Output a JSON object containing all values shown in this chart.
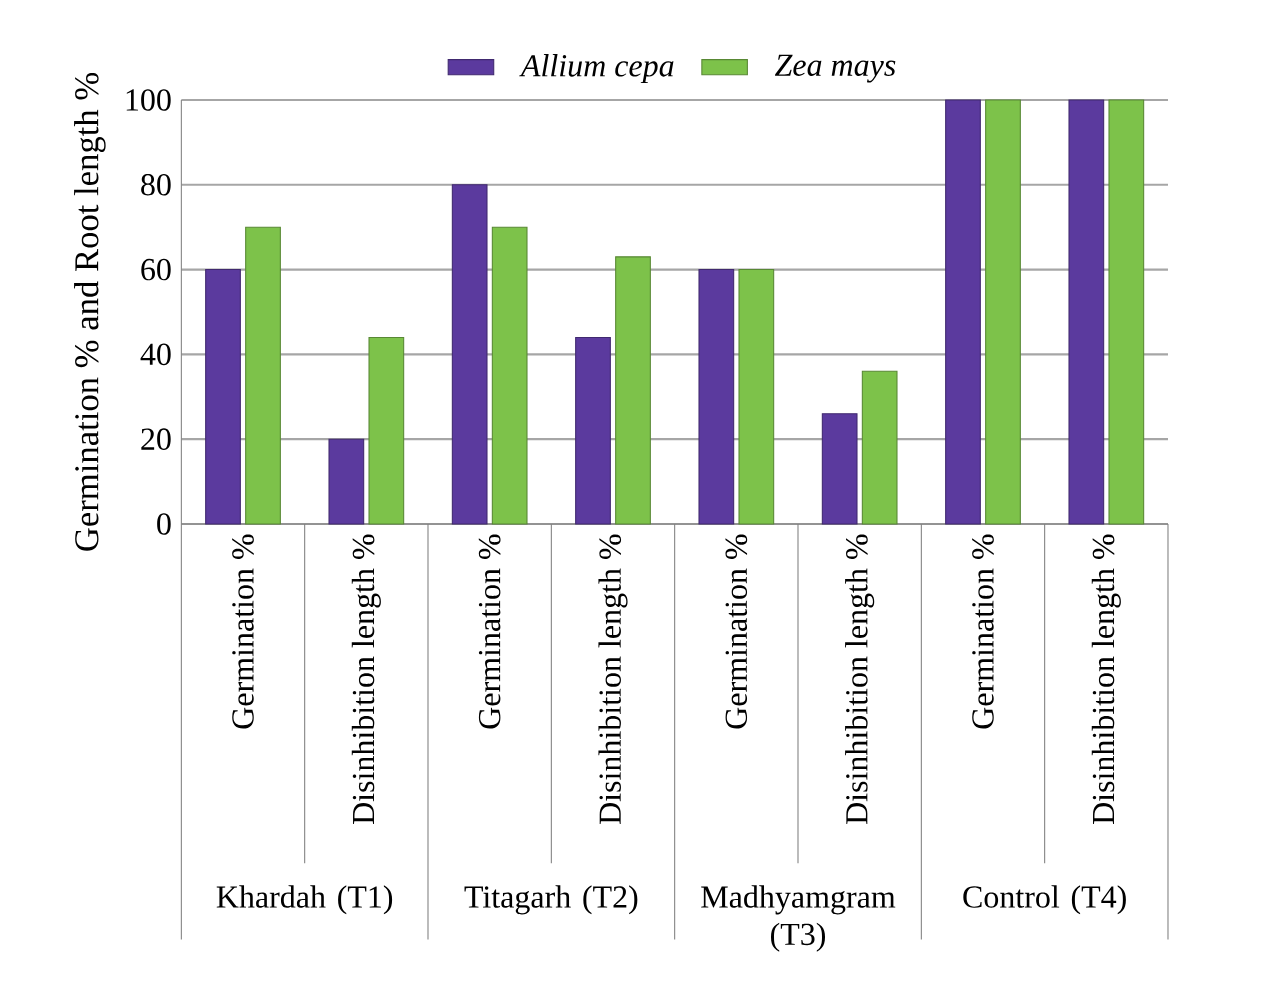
{
  "chart_data": {
    "type": "bar",
    "ylabel": "Germination  %  and Root length %",
    "categories": [
      "Germination  %",
      "Disinhibition length %",
      "Germination  %",
      "Disinhibition length %",
      "Germination  %",
      "Disinhibition length %",
      "Germination  %",
      "Disinhibition length %"
    ],
    "series": [
      {
        "name": "Allium cepa",
        "color": "#5b3a9e",
        "values": [
          60,
          20,
          80,
          44,
          60,
          26,
          100,
          100
        ]
      },
      {
        "name": "Zea mays",
        "color": "#7dc24a",
        "values": [
          70,
          44,
          70,
          63,
          60,
          36,
          100,
          100
        ]
      }
    ],
    "annotations": [
      "Khardah (T1)",
      "Titagarh (T2)",
      "Madhyamgram (T3)",
      "Control (T4)"
    ],
    "ylim": [
      0,
      100
    ],
    "yticks": [
      0,
      20,
      40,
      60,
      80,
      100
    ],
    "grid": "y",
    "legend": "top"
  }
}
